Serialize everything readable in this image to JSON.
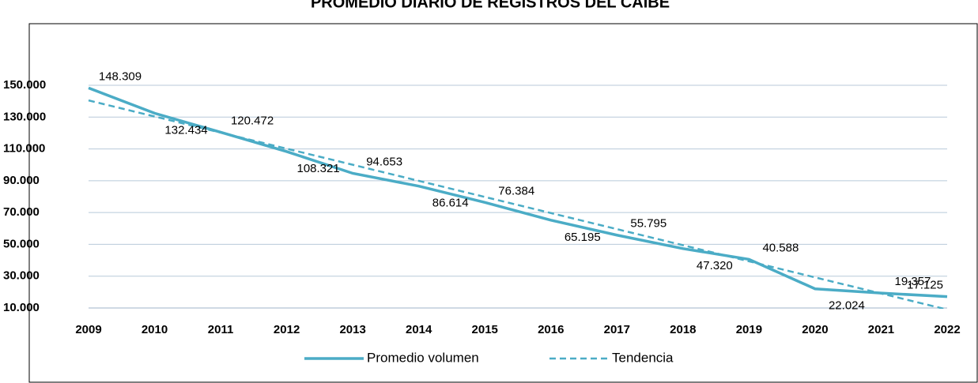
{
  "chart_data": {
    "type": "line",
    "title": "PROMEDIO DIARIO DE REGISTROS DEL CAIBE",
    "categories": [
      "2009",
      "2010",
      "2011",
      "2012",
      "2013",
      "2014",
      "2015",
      "2016",
      "2017",
      "2018",
      "2019",
      "2020",
      "2021",
      "2022"
    ],
    "series": [
      {
        "name": "Promedio volumen",
        "color": "#4bacc6",
        "style": "solid",
        "values": [
          148309,
          132434,
          120472,
          108321,
          94653,
          86614,
          76384,
          65195,
          55795,
          47320,
          40588,
          22024,
          19357,
          17125
        ],
        "value_labels": [
          "148.309",
          "132.434",
          "120.472",
          "108.321",
          "94.653",
          "86.614",
          "76.384",
          "65.195",
          "55.795",
          "47.320",
          "40.588",
          "22.024",
          "19.357",
          "17.125"
        ]
      },
      {
        "name": "Tendencia",
        "color": "#4bacc6",
        "style": "dashed",
        "values": [
          140500,
          130385,
          120269,
          110154,
          100038,
          89923,
          79808,
          69692,
          59577,
          49462,
          39346,
          29231,
          19115,
          9000
        ]
      }
    ],
    "ylim": [
      10000,
      150000
    ],
    "yticks": [
      {
        "value": 10000,
        "label": "10.000"
      },
      {
        "value": 30000,
        "label": "30.000"
      },
      {
        "value": 50000,
        "label": "50.000"
      },
      {
        "value": 70000,
        "label": "70.000"
      },
      {
        "value": 90000,
        "label": "90.000"
      },
      {
        "value": 110000,
        "label": "110.000"
      },
      {
        "value": 130000,
        "label": "130.000"
      },
      {
        "value": 150000,
        "label": "150.000"
      }
    ],
    "grid": true,
    "legend": "bottom"
  }
}
